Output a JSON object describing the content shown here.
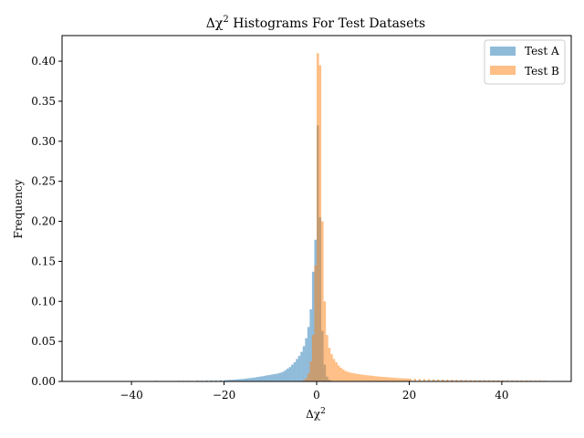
{
  "chart_data": {
    "type": "bar",
    "title_prefix": "Δχ",
    "title_exp": "2",
    "title_suffix": " Histograms For Test Datasets",
    "xlabel_prefix": "Δχ",
    "xlabel_exp": "2",
    "ylabel": "Frequency",
    "xlim": [
      -55,
      55
    ],
    "ylim": [
      0,
      0.432
    ],
    "x_ticks": [
      -40,
      -20,
      0,
      20,
      40
    ],
    "x_tick_labels": [
      "−40",
      "−20",
      "0",
      "20",
      "40"
    ],
    "y_ticks": [
      0.0,
      0.05,
      0.1,
      0.15,
      0.2,
      0.25,
      0.3,
      0.35,
      0.4
    ],
    "y_tick_labels": [
      "0.00",
      "0.05",
      "0.10",
      "0.15",
      "0.20",
      "0.25",
      "0.30",
      "0.35",
      "0.40"
    ],
    "legend_position": "top-right",
    "grid": false,
    "bin_width": 0.5,
    "series": [
      {
        "name": "Test A",
        "color": "#1f77b4",
        "alpha": 0.5,
        "bins": [
          [
            -45,
            0.0005
          ],
          [
            -42,
            0.0004
          ],
          [
            -40,
            0.0004
          ],
          [
            -37,
            0.0005
          ],
          [
            -35,
            0.0008
          ],
          [
            -34,
            0.0006
          ],
          [
            -32,
            0.0006
          ],
          [
            -30,
            0.0007
          ],
          [
            -29,
            0.0008
          ],
          [
            -28,
            0.0007
          ],
          [
            -26,
            0.0009
          ],
          [
            -25,
            0.0009
          ],
          [
            -24,
            0.001
          ],
          [
            -23,
            0.0012
          ],
          [
            -22,
            0.0012
          ],
          [
            -21,
            0.0014
          ],
          [
            -20,
            0.0016
          ],
          [
            -19.5,
            0.0018
          ],
          [
            -19,
            0.002
          ],
          [
            -18.5,
            0.002
          ],
          [
            -18,
            0.0022
          ],
          [
            -17.5,
            0.0025
          ],
          [
            -17,
            0.0028
          ],
          [
            -16.5,
            0.003
          ],
          [
            -16,
            0.0032
          ],
          [
            -15.5,
            0.0036
          ],
          [
            -15,
            0.004
          ],
          [
            -14.5,
            0.0042
          ],
          [
            -14,
            0.0046
          ],
          [
            -13.5,
            0.005
          ],
          [
            -13,
            0.0055
          ],
          [
            -12.5,
            0.006
          ],
          [
            -12,
            0.0064
          ],
          [
            -11.5,
            0.007
          ],
          [
            -11,
            0.0075
          ],
          [
            -10.5,
            0.008
          ],
          [
            -10,
            0.0085
          ],
          [
            -9.5,
            0.009
          ],
          [
            -9,
            0.0095
          ],
          [
            -8.5,
            0.01
          ],
          [
            -8,
            0.011
          ],
          [
            -7.5,
            0.012
          ],
          [
            -7,
            0.014
          ],
          [
            -6.5,
            0.016
          ],
          [
            -6,
            0.018
          ],
          [
            -5.5,
            0.021
          ],
          [
            -5,
            0.024
          ],
          [
            -4.5,
            0.028
          ],
          [
            -4,
            0.032
          ],
          [
            -3.5,
            0.037
          ],
          [
            -3,
            0.044
          ],
          [
            -2.5,
            0.054
          ],
          [
            -2,
            0.068
          ],
          [
            -1.5,
            0.09
          ],
          [
            -1,
            0.137
          ],
          [
            -0.5,
            0.177
          ],
          [
            0,
            0.32
          ],
          [
            0.5,
            0.205
          ],
          [
            1,
            0.063
          ],
          [
            1.5,
            0.021
          ],
          [
            2,
            0.006
          ],
          [
            2.5,
            0.002
          ],
          [
            3,
            0.0008
          ],
          [
            3.5,
            0.0004
          ]
        ]
      },
      {
        "name": "Test B",
        "color": "#ff7f0e",
        "alpha": 0.5,
        "bins": [
          [
            -3.5,
            0.0005
          ],
          [
            -3,
            0.0015
          ],
          [
            -2.5,
            0.004
          ],
          [
            -2,
            0.01
          ],
          [
            -1.5,
            0.025
          ],
          [
            -1,
            0.058
          ],
          [
            -0.5,
            0.145
          ],
          [
            0,
            0.41
          ],
          [
            0.5,
            0.395
          ],
          [
            1,
            0.2
          ],
          [
            1.5,
            0.1
          ],
          [
            2,
            0.058
          ],
          [
            2.5,
            0.042
          ],
          [
            3,
            0.034
          ],
          [
            3.5,
            0.028
          ],
          [
            4,
            0.024
          ],
          [
            4.5,
            0.02
          ],
          [
            5,
            0.017
          ],
          [
            5.5,
            0.015
          ],
          [
            6,
            0.013
          ],
          [
            6.5,
            0.012
          ],
          [
            7,
            0.011
          ],
          [
            7.5,
            0.0105
          ],
          [
            8,
            0.01
          ],
          [
            8.5,
            0.0095
          ],
          [
            9,
            0.009
          ],
          [
            9.5,
            0.0085
          ],
          [
            10,
            0.0082
          ],
          [
            10.5,
            0.0078
          ],
          [
            11,
            0.0075
          ],
          [
            11.5,
            0.0072
          ],
          [
            12,
            0.0068
          ],
          [
            12.5,
            0.0065
          ],
          [
            13,
            0.0062
          ],
          [
            13.5,
            0.006
          ],
          [
            14,
            0.0057
          ],
          [
            14.5,
            0.0055
          ],
          [
            15,
            0.0052
          ],
          [
            15.5,
            0.005
          ],
          [
            16,
            0.0048
          ],
          [
            16.5,
            0.0046
          ],
          [
            17,
            0.0044
          ],
          [
            17.5,
            0.0042
          ],
          [
            18,
            0.004
          ],
          [
            18.5,
            0.0039
          ],
          [
            19,
            0.0037
          ],
          [
            19.5,
            0.0036
          ],
          [
            20,
            0.0035
          ],
          [
            21,
            0.0033
          ],
          [
            22,
            0.0031
          ],
          [
            23,
            0.0029
          ],
          [
            24,
            0.0027
          ],
          [
            25,
            0.0026
          ],
          [
            26,
            0.0024
          ],
          [
            27,
            0.0023
          ],
          [
            28,
            0.0022
          ],
          [
            29,
            0.0021
          ],
          [
            30,
            0.002
          ],
          [
            31,
            0.0019
          ],
          [
            32,
            0.0018
          ],
          [
            33,
            0.0017
          ],
          [
            34,
            0.0016
          ],
          [
            35,
            0.0016
          ],
          [
            36,
            0.0015
          ],
          [
            37,
            0.0015
          ],
          [
            38,
            0.0014
          ],
          [
            39,
            0.0014
          ],
          [
            40,
            0.0013
          ],
          [
            41,
            0.0013
          ],
          [
            42,
            0.0012
          ],
          [
            43,
            0.0012
          ],
          [
            44,
            0.0011
          ],
          [
            45,
            0.0011
          ],
          [
            46,
            0.001
          ],
          [
            47,
            0.001
          ],
          [
            48,
            0.001
          ],
          [
            49,
            0.0009
          ]
        ]
      }
    ]
  }
}
